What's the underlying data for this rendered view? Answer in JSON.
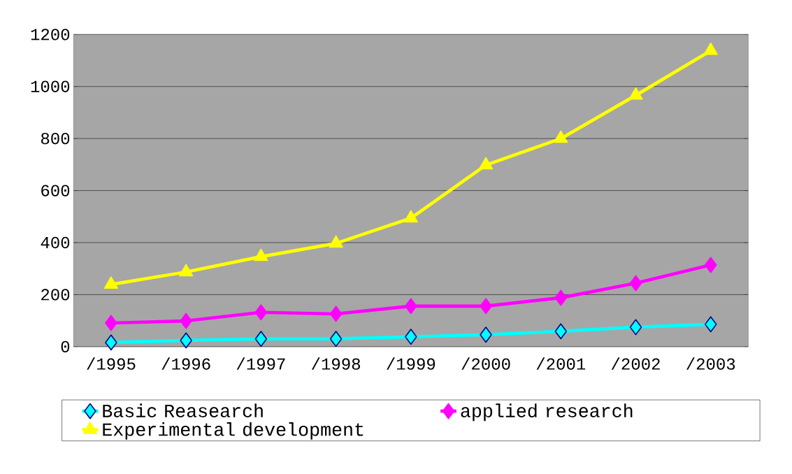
{
  "chart_data": {
    "type": "line",
    "categories": [
      "/1995",
      "/1996",
      "/1997",
      "/1998",
      "/1999",
      "/2000",
      "/2001",
      "/2002",
      "/2003"
    ],
    "series": [
      {
        "name": "Basic Reasearch",
        "color": "#00ffff",
        "marker": "diamond",
        "values": [
          16,
          24,
          30,
          30,
          38,
          46,
          59,
          75,
          86
        ]
      },
      {
        "name": "applied research",
        "color": "#ff00ff",
        "marker": "diamond",
        "values": [
          91,
          99,
          132,
          126,
          156,
          156,
          188,
          244,
          314
        ]
      },
      {
        "name": "Experimental development",
        "color": "#ffff00",
        "marker": "triangle",
        "values": [
          239,
          287,
          346,
          397,
          494,
          698,
          800,
          966,
          1138
        ]
      }
    ],
    "ylim": [
      0,
      1200
    ],
    "yticks": [
      0,
      200,
      400,
      600,
      800,
      1000,
      1200
    ],
    "grid": "y",
    "legend": "bottom",
    "line_style": "solid"
  }
}
